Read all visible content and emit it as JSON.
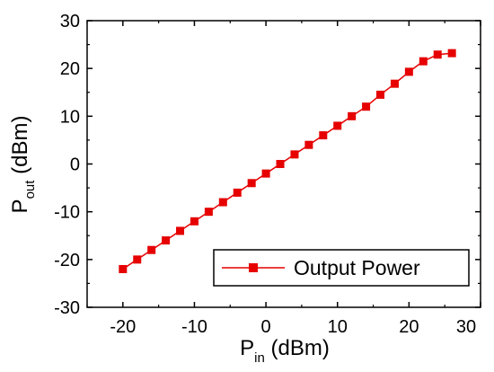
{
  "chart_data": {
    "type": "line",
    "xlim": [
      -25,
      30
    ],
    "ylim": [
      -30,
      30
    ],
    "x_ticks": [
      -20,
      -10,
      0,
      10,
      20,
      30
    ],
    "y_ticks": [
      -30,
      -20,
      -10,
      0,
      10,
      20,
      30
    ],
    "x_tick_labels": [
      "-20",
      "-10",
      "0",
      "10",
      "20",
      "30"
    ],
    "y_tick_labels": [
      "-30",
      "-20",
      "-10",
      "0",
      "10",
      "20",
      "30"
    ],
    "xlabel": {
      "main": "P",
      "sub": "in",
      "unit": " (dBm)"
    },
    "ylabel": {
      "main": "P",
      "sub": "out",
      "unit": " (dBm)"
    },
    "grid": false,
    "legend_position": "bottom-right",
    "series": [
      {
        "name": "Output Power",
        "color": "#e60000",
        "marker": "square",
        "x": [
          -20,
          -18,
          -16,
          -14,
          -12,
          -10,
          -8,
          -6,
          -4,
          -2,
          0,
          2,
          4,
          6,
          8,
          10,
          12,
          14,
          16,
          18,
          20,
          22,
          24,
          26
        ],
        "y": [
          -22,
          -20,
          -18,
          -16,
          -14,
          -12,
          -10,
          -8,
          -6,
          -4,
          -2,
          0,
          2,
          4,
          6,
          8,
          10,
          12,
          14.5,
          16.8,
          19.3,
          21.5,
          22.9,
          23.2
        ]
      }
    ]
  }
}
